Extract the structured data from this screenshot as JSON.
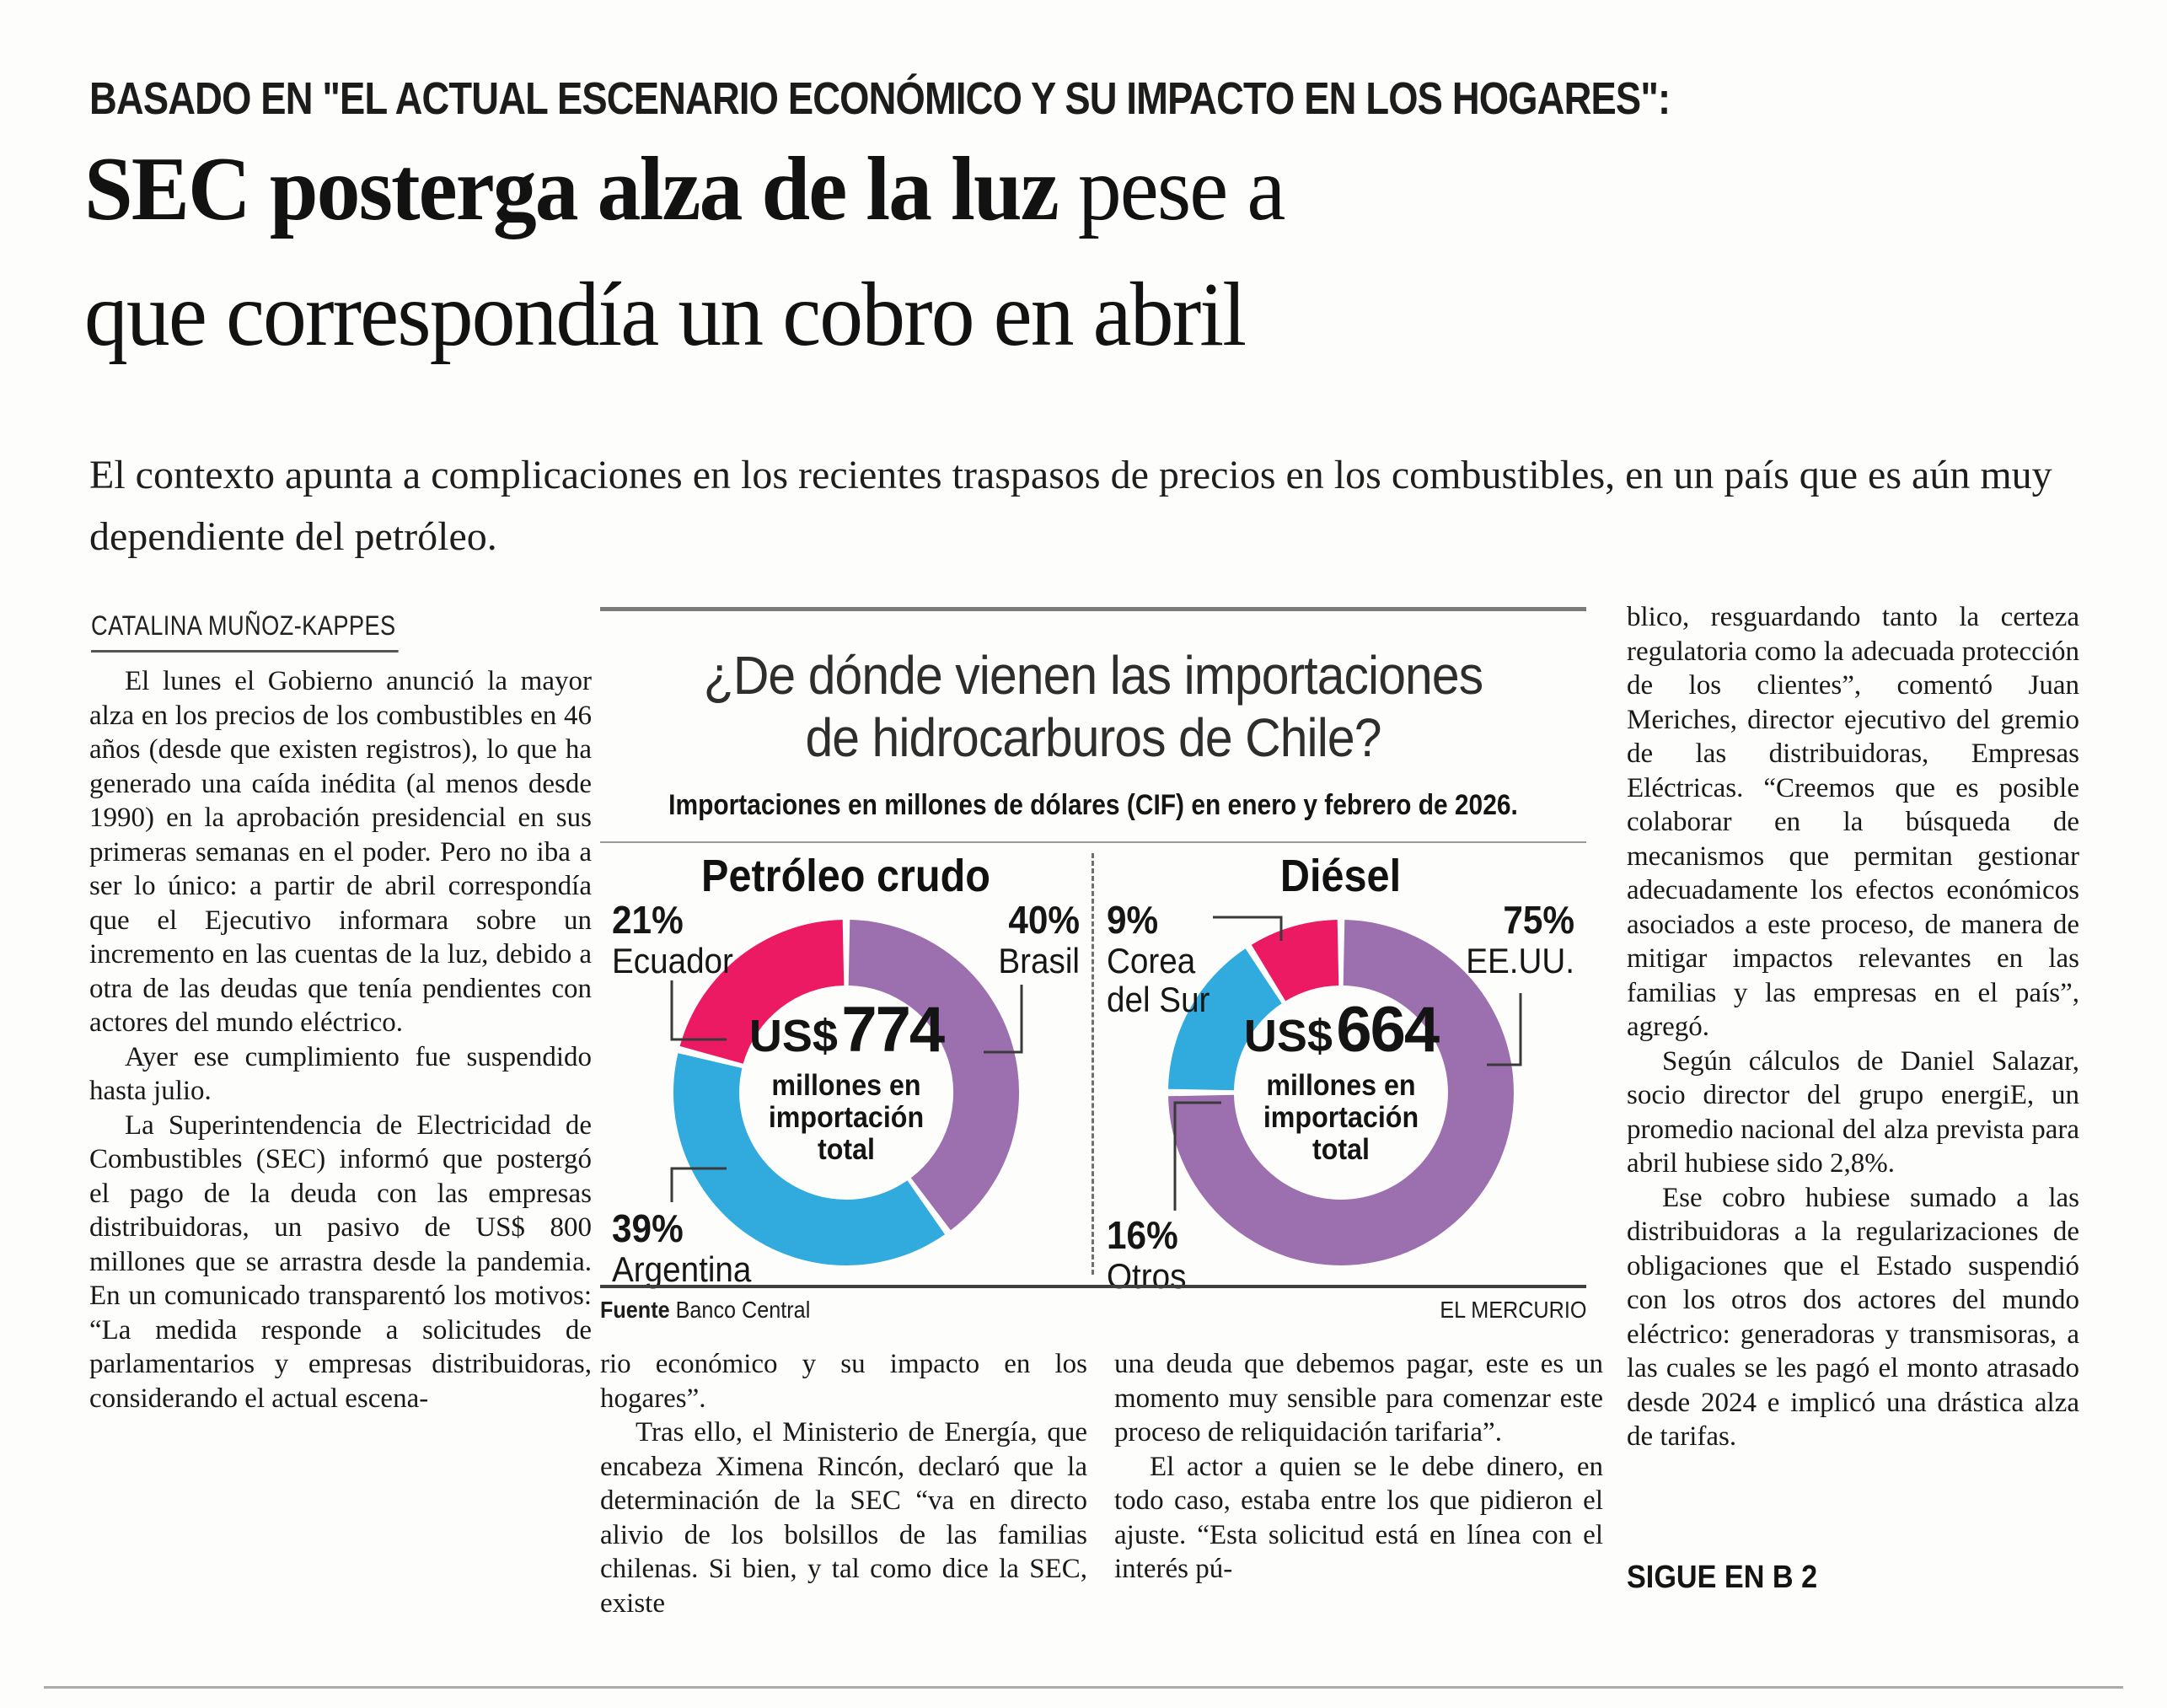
{
  "kicker": "BASADO EN \"EL ACTUAL ESCENARIO ECONÓMICO Y SU IMPACTO EN LOS HOGARES\":",
  "headline": {
    "line1_bold": "SEC posterga alza de la luz",
    "line1_rest": "pese a",
    "line2": "que correspondía un cobro en abril"
  },
  "deck": "El contexto apunta a complicaciones en los recientes traspasos de precios en los combustibles, en un país que es aún muy dependiente del petróleo.",
  "byline": "CATALINA MUÑOZ-KAPPES",
  "columns": {
    "col1": [
      "El lunes el Gobierno anunció la mayor alza en los precios de los combustibles en 46 años (desde que existen registros), lo que ha generado una caída inédita (al menos desde 1990) en la aprobación presidencial en sus primeras semanas en el poder. Pero no iba a ser lo único: a partir de abril correspondía que el Ejecutivo informara sobre un incremento en las cuentas de la luz, debido a otra de las deudas que tenía pendientes con actores del mundo eléctrico.",
      "Ayer ese cumplimiento fue suspendido hasta julio.",
      "La Superintendencia de Electricidad de Combustibles (SEC) informó que postergó el pago de la deuda con las empresas distribuidoras, un pasivo de US$ 800 millones que se arrastra desde la pandemia. En un comunicado transparentó los motivos: “La medida responde a solicitudes de parlamentarios y empresas distribuidoras, considerando el actual escena-"
    ],
    "col2": [
      "rio económico y su impacto en los hogares”.",
      "Tras ello, el Ministerio de Energía, que encabeza Ximena Rincón, declaró que la determinación de la SEC “va en directo alivio de los bolsillos de las familias chilenas. Si bien, y tal como dice la SEC, existe"
    ],
    "col3": [
      "una deuda que debemos pagar, este es un momento muy sensible para comenzar este proceso de reliquidación tarifaria”.",
      "El actor a quien se le debe dinero, en todo caso, estaba entre los que pidieron el ajuste. “Esta solicitud está en línea con el interés pú-"
    ],
    "col4": [
      "blico, resguardando tanto la certeza regulatoria como la adecuada protección de los clientes”, comentó Juan Meriches, director ejecutivo del gremio de las distribuidoras, Empresas Eléctricas. “Creemos que es posible colaborar en la búsqueda de mecanismos que permitan gestionar adecuadamente los efectos económicos asociados a este proceso, de manera de mitigar impactos relevantes en las familias y las empresas en el país”, agregó.",
      "Según cálculos de Daniel Salazar, socio director del grupo energiE, un promedio nacional del alza prevista para abril hubiese sido 2,8%.",
      "Ese cobro hubiese sumado a las distribuidoras a la regularizaciones de obligaciones que el Estado suspendió con los otros dos actores del mundo eléctrico: generadoras y transmisoras, a las cuales se les pagó el monto atrasado desde 2024 e implicó una drástica alza de tarifas."
    ]
  },
  "infographic": {
    "title_line1": "¿De dónde vienen las importaciones",
    "title_line2": "de hidrocarburos de Chile?",
    "subtitle": "Importaciones en millones de dólares (CIF) en enero y febrero de 2026.",
    "source_label": "Fuente",
    "source_value": "Banco Central",
    "credit": "EL MERCURIO"
  },
  "continuation": "SIGUE EN B 2",
  "colors": {
    "pink": "#eb1a63",
    "purple": "#9c6fae",
    "blue": "#31aade",
    "leader_line": "#3a3a3a"
  },
  "chart_data": [
    {
      "type": "pie",
      "subtype": "donut",
      "title": "Petróleo crudo",
      "units": "percent of US$ 774 million total imports (CIF), Jan–Feb 2026",
      "center": {
        "currency": "US$",
        "value": "774",
        "caption": "millones en importación total"
      },
      "slices": [
        {
          "name": "Brasil",
          "pct": 40,
          "pct_label": "40%",
          "color": "#9c6fae"
        },
        {
          "name": "Argentina",
          "pct": 39,
          "pct_label": "39%",
          "color": "#31aade"
        },
        {
          "name": "Ecuador",
          "pct": 21,
          "pct_label": "21%",
          "color": "#eb1a63"
        }
      ],
      "legend_position": "outside-labels",
      "start_angle": "top",
      "direction": "clockwise"
    },
    {
      "type": "pie",
      "subtype": "donut",
      "title": "Diésel",
      "units": "percent of US$ 664 million total imports (CIF), Jan–Feb 2026",
      "center": {
        "currency": "US$",
        "value": "664",
        "caption": "millones en importación total"
      },
      "slices": [
        {
          "name": "EE.UU.",
          "pct": 75,
          "pct_label": "75%",
          "color": "#9c6fae"
        },
        {
          "name": "Otros",
          "pct": 16,
          "pct_label": "16%",
          "color": "#31aade"
        },
        {
          "name": "Corea del Sur",
          "pct": 9,
          "pct_label": "9%",
          "color": "#eb1a63"
        }
      ],
      "legend_position": "outside-labels",
      "start_angle": "top",
      "direction": "clockwise"
    }
  ]
}
